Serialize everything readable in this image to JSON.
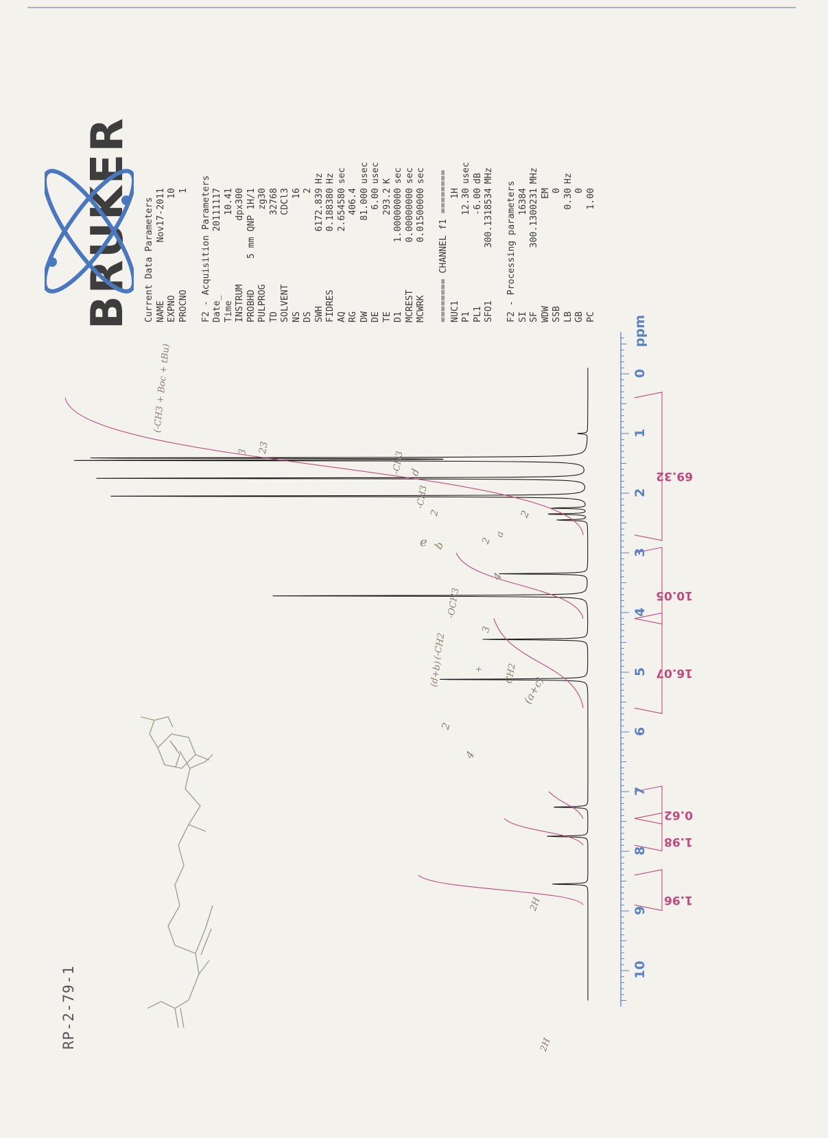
{
  "sample_id": "RP-2-79-1",
  "brand": "BRUKER",
  "parameters": {
    "current": {
      "title": "Current Data Parameters",
      "rows": [
        [
          "NAME",
          "Nov17-2011",
          ""
        ],
        [
          "EXPNO",
          "10",
          ""
        ],
        [
          "PROCNO",
          "1",
          ""
        ]
      ]
    },
    "acquisition": {
      "title": "F2 - Acquisition Parameters",
      "rows": [
        [
          "Date_",
          "20111117",
          ""
        ],
        [
          "Time",
          "10.41",
          ""
        ],
        [
          "INSTRUM",
          "dpx300",
          ""
        ],
        [
          "PROBHD",
          "5 mm QNP 1H/1",
          ""
        ],
        [
          "PULPROG",
          "zg30",
          ""
        ],
        [
          "TD",
          "32768",
          ""
        ],
        [
          "SOLVENT",
          "CDCl3",
          ""
        ],
        [
          "NS",
          "16",
          ""
        ],
        [
          "DS",
          "2",
          ""
        ],
        [
          "SWH",
          "6172.839",
          "Hz"
        ],
        [
          "FIDRES",
          "0.188380",
          "Hz"
        ],
        [
          "AQ",
          "2.654580",
          "sec"
        ],
        [
          "RG",
          "406.4",
          ""
        ],
        [
          "DW",
          "81.000",
          "usec"
        ],
        [
          "DE",
          "6.00",
          "usec"
        ],
        [
          "TE",
          "293.2",
          "K"
        ],
        [
          "D1",
          "1.00000000",
          "sec"
        ],
        [
          "MCREST",
          "0.00000000",
          "sec"
        ],
        [
          "MCWRK",
          "0.01500000",
          "sec"
        ]
      ]
    },
    "channel": {
      "title": "======== CHANNEL f1 ========",
      "rows": [
        [
          "NUC1",
          "1H",
          ""
        ],
        [
          "P1",
          "12.30",
          "usec"
        ],
        [
          "PL1",
          "-6.00",
          "dB"
        ],
        [
          "SFO1",
          "300.1318534",
          "MHz"
        ]
      ]
    },
    "processing": {
      "title": "F2 - Processing parameters",
      "rows": [
        [
          "SI",
          "16384",
          ""
        ],
        [
          "SF",
          "300.1300231",
          "MHz"
        ],
        [
          "WDW",
          "EM",
          ""
        ],
        [
          "SSB",
          "0",
          ""
        ],
        [
          "LB",
          "0.30",
          "Hz"
        ],
        [
          "GB",
          "0",
          ""
        ],
        [
          "PC",
          "1.00",
          ""
        ]
      ]
    }
  },
  "handwritten_notes": [
    "23",
    "(-CH3 + Boc + tBu)",
    "3",
    "-CH3",
    "d",
    "-CH3",
    "e",
    "2",
    "b",
    "2",
    "a",
    "2",
    "4",
    "-OCH3",
    "3",
    "(-CH2",
    "+",
    "CH2",
    "(d+b)",
    "2",
    "(a+c)",
    "4",
    "2H",
    "2H"
  ],
  "colors": {
    "spectrum": "#1a1a1a",
    "integral": "#c04a7e",
    "axis": "#5b82c4",
    "annotation": "#8a7e70"
  },
  "chart_data": {
    "type": "line",
    "xlabel": "ppm",
    "x_reversed": true,
    "xlim": [
      -0.5,
      10.5
    ],
    "ticks": [
      10,
      9,
      8,
      7,
      6,
      5,
      4,
      3,
      2,
      1,
      0
    ],
    "tick_labels": [
      "10",
      "9",
      "8",
      "7",
      "6",
      "5",
      "4",
      "3",
      "2",
      "1",
      "0"
    ],
    "peaks": [
      {
        "ppm": 8.55,
        "height": 0.07
      },
      {
        "ppm": 7.75,
        "height": 0.08
      },
      {
        "ppm": 7.26,
        "height": 0.07
      },
      {
        "ppm": 5.12,
        "height": 0.3
      },
      {
        "ppm": 4.45,
        "height": 0.21
      },
      {
        "ppm": 3.72,
        "height": 0.61
      },
      {
        "ppm": 3.35,
        "height": 0.17
      },
      {
        "ppm": 2.45,
        "height": 0.06
      },
      {
        "ppm": 2.35,
        "height": 0.08
      },
      {
        "ppm": 2.25,
        "height": 0.07
      },
      {
        "ppm": 2.05,
        "height": 0.93
      },
      {
        "ppm": 1.75,
        "height": 0.94
      },
      {
        "ppm": 1.45,
        "height": 0.98
      },
      {
        "ppm": 1.41,
        "height": 0.97
      },
      {
        "ppm": 1.0,
        "height": 0.02
      }
    ],
    "integrals": [
      {
        "from": 8.9,
        "to": 8.4,
        "value": "1.96"
      },
      {
        "from": 7.9,
        "to": 7.45,
        "value": "1.98"
      },
      {
        "from": 7.45,
        "to": 7.0,
        "value": "0.62"
      },
      {
        "from": 5.6,
        "to": 4.1,
        "value": "16.07"
      },
      {
        "from": 4.1,
        "to": 3.0,
        "value": "10.05"
      },
      {
        "from": 2.7,
        "to": 0.4,
        "value": "69.32"
      }
    ]
  }
}
